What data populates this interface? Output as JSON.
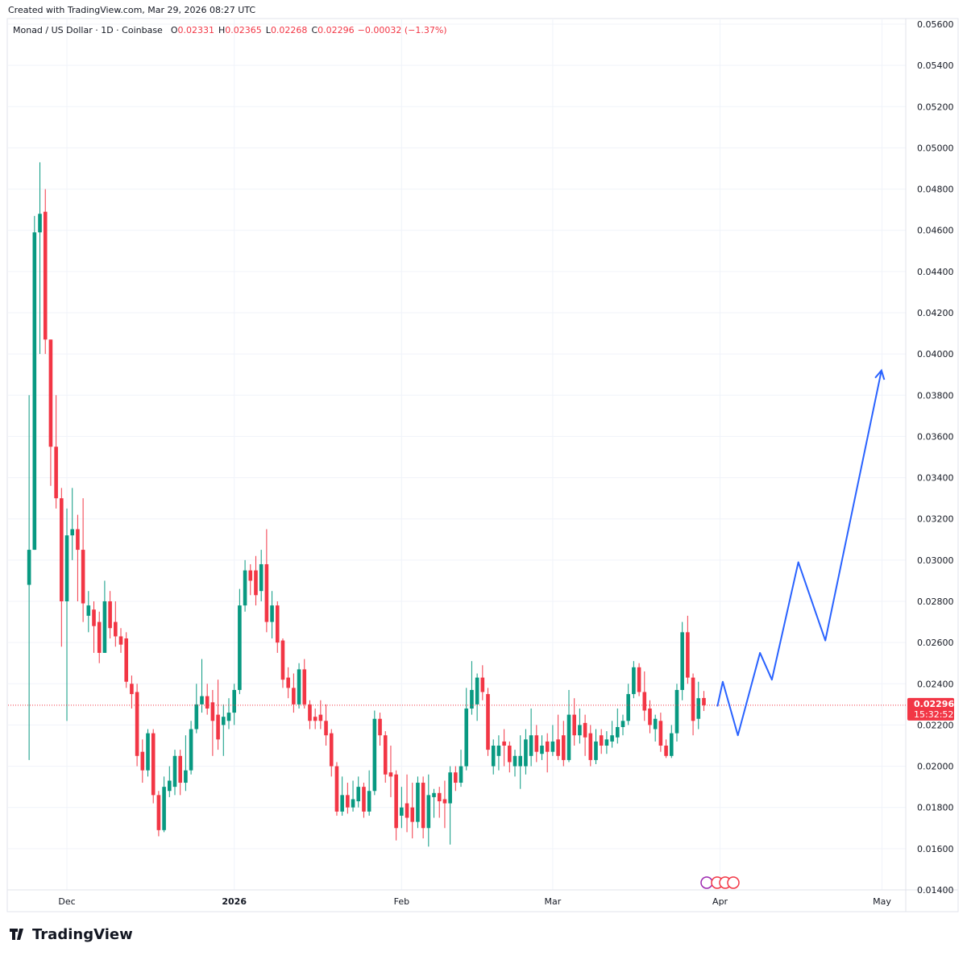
{
  "header": {
    "created": "Created with TradingView.com, Mar 29, 2026 08:27 UTC"
  },
  "footer": {
    "logo": "TradingView"
  },
  "chart_data": {
    "type": "candlestick",
    "title": "Monad / US Dollar · 1D · Coinbase",
    "legend": {
      "o_label": "O",
      "o": 0.02331,
      "h_label": "H",
      "h": 0.02365,
      "l_label": "L",
      "l": 0.02268,
      "c_label": "C",
      "c": 0.02296,
      "change": "−0.00032 (−1.37%)"
    },
    "up_color": "#089981",
    "down_color": "#f23645",
    "open": [
      0.0288,
      0.0305,
      0.0459,
      0.0469,
      0.0407,
      0.0355,
      0.033,
      0.028,
      0.0312,
      0.0315,
      0.0305,
      0.0273,
      0.0276,
      0.027,
      0.0255,
      0.028,
      0.027,
      0.0263,
      0.0262,
      0.024,
      0.0236,
      0.0207,
      0.0198,
      0.0216,
      0.0186,
      0.0169,
      0.0188,
      0.019,
      0.0205,
      0.0192,
      0.0198,
      0.0218,
      0.023,
      0.0234,
      0.0231,
      0.0225,
      0.022,
      0.0222,
      0.0226,
      0.0237,
      0.0278,
      0.0295,
      0.0295,
      0.0285,
      0.0298,
      0.027,
      0.0278,
      0.0261,
      0.0243,
      0.0238,
      0.023,
      0.0247,
      0.023,
      0.0224,
      0.0225,
      0.0222,
      0.0216,
      0.02,
      0.0178,
      0.0186,
      0.018,
      0.0183,
      0.019,
      0.0178,
      0.0188,
      0.0223,
      0.0215,
      0.0197,
      0.0196,
      0.0176,
      0.0182,
      0.018,
      0.0173,
      0.0192,
      0.017,
      0.0185,
      0.0187,
      0.0184,
      0.0182,
      0.0197,
      0.0192,
      0.02,
      0.0228,
      0.023,
      0.0243,
      0.0235,
      0.02,
      0.0205,
      0.0212,
      0.021,
      0.02,
      0.02,
      0.02,
      0.0205,
      0.0215,
      0.0206,
      0.0212,
      0.0207,
      0.0213,
      0.0215,
      0.0203,
      0.0225,
      0.0215,
      0.0221,
      0.0216,
      0.0203,
      0.0215,
      0.021,
      0.0212,
      0.0214,
      0.0219,
      0.0222,
      0.0235,
      0.0248,
      0.0236,
      0.0228,
      0.0218,
      0.0222,
      0.021,
      0.0205,
      0.0216,
      0.0237,
      0.0265,
      0.0243,
      0.0223,
      0.02331
    ],
    "high": [
      0.038,
      0.0467,
      0.0493,
      0.048,
      0.0407,
      0.038,
      0.0335,
      0.0325,
      0.0335,
      0.0322,
      0.033,
      0.0285,
      0.028,
      0.0275,
      0.029,
      0.0285,
      0.028,
      0.0267,
      0.0265,
      0.0244,
      0.024,
      0.0213,
      0.0218,
      0.0218,
      0.0188,
      0.0195,
      0.02,
      0.0208,
      0.0208,
      0.0215,
      0.0222,
      0.024,
      0.0252,
      0.024,
      0.0237,
      0.0242,
      0.023,
      0.0233,
      0.024,
      0.0286,
      0.03,
      0.0298,
      0.0302,
      0.0305,
      0.0315,
      0.0285,
      0.028,
      0.0262,
      0.0248,
      0.0245,
      0.025,
      0.0252,
      0.0232,
      0.0228,
      0.0232,
      0.023,
      0.0218,
      0.0202,
      0.0195,
      0.0192,
      0.0193,
      0.0195,
      0.0192,
      0.0198,
      0.0227,
      0.0226,
      0.0217,
      0.021,
      0.0198,
      0.019,
      0.0196,
      0.0192,
      0.0195,
      0.0195,
      0.0196,
      0.0189,
      0.019,
      0.0193,
      0.02,
      0.02,
      0.0208,
      0.0238,
      0.0251,
      0.0245,
      0.0249,
      0.0238,
      0.0213,
      0.0215,
      0.0218,
      0.0212,
      0.0208,
      0.0215,
      0.0218,
      0.0228,
      0.022,
      0.0215,
      0.0216,
      0.022,
      0.0225,
      0.0222,
      0.0237,
      0.0233,
      0.0228,
      0.0225,
      0.022,
      0.0218,
      0.0218,
      0.0217,
      0.0222,
      0.0228,
      0.0225,
      0.024,
      0.0251,
      0.025,
      0.0246,
      0.0232,
      0.0225,
      0.0226,
      0.0213,
      0.022,
      0.024,
      0.027,
      0.0273,
      0.0245,
      0.0241,
      0.02365
    ],
    "low": [
      0.0203,
      0.0305,
      0.04,
      0.04,
      0.0336,
      0.0325,
      0.0258,
      0.0222,
      0.03,
      0.028,
      0.027,
      0.0265,
      0.0255,
      0.025,
      0.0255,
      0.0262,
      0.0258,
      0.0255,
      0.0238,
      0.0228,
      0.02,
      0.0192,
      0.0195,
      0.0182,
      0.0166,
      0.0168,
      0.0185,
      0.0186,
      0.0186,
      0.0188,
      0.0196,
      0.0216,
      0.0226,
      0.0225,
      0.0205,
      0.0208,
      0.0205,
      0.0218,
      0.022,
      0.0235,
      0.0275,
      0.0283,
      0.0278,
      0.028,
      0.0265,
      0.0262,
      0.0255,
      0.0238,
      0.0233,
      0.0226,
      0.0228,
      0.0228,
      0.0218,
      0.0218,
      0.0218,
      0.021,
      0.0195,
      0.0176,
      0.0176,
      0.0177,
      0.0178,
      0.018,
      0.0175,
      0.0176,
      0.0186,
      0.021,
      0.0192,
      0.0185,
      0.0164,
      0.017,
      0.0168,
      0.0165,
      0.017,
      0.0165,
      0.0161,
      0.0175,
      0.0175,
      0.017,
      0.0162,
      0.0188,
      0.019,
      0.0198,
      0.0225,
      0.0222,
      0.0232,
      0.0205,
      0.0196,
      0.0198,
      0.02,
      0.0197,
      0.0195,
      0.0189,
      0.0196,
      0.02,
      0.0202,
      0.0203,
      0.0197,
      0.0205,
      0.0203,
      0.02,
      0.0202,
      0.021,
      0.0211,
      0.0205,
      0.02,
      0.0201,
      0.0206,
      0.0206,
      0.0209,
      0.0211,
      0.0215,
      0.022,
      0.0233,
      0.0234,
      0.0222,
      0.0216,
      0.0212,
      0.0207,
      0.0204,
      0.0204,
      0.0212,
      0.0232,
      0.024,
      0.0215,
      0.0218,
      0.02268
    ],
    "close": [
      0.0305,
      0.0459,
      0.0468,
      0.0407,
      0.0355,
      0.033,
      0.028,
      0.0312,
      0.0315,
      0.0305,
      0.0279,
      0.0278,
      0.0268,
      0.0255,
      0.028,
      0.0267,
      0.0263,
      0.0259,
      0.0241,
      0.0235,
      0.0205,
      0.0198,
      0.0216,
      0.0186,
      0.0169,
      0.019,
      0.0193,
      0.0205,
      0.0192,
      0.0198,
      0.0218,
      0.023,
      0.0234,
      0.0228,
      0.0222,
      0.0213,
      0.0224,
      0.0226,
      0.0237,
      0.0278,
      0.0295,
      0.029,
      0.0283,
      0.0298,
      0.027,
      0.0278,
      0.026,
      0.0242,
      0.0238,
      0.023,
      0.0247,
      0.023,
      0.0222,
      0.0222,
      0.0222,
      0.0215,
      0.02,
      0.0178,
      0.0186,
      0.018,
      0.0184,
      0.019,
      0.0178,
      0.0188,
      0.0223,
      0.0215,
      0.0196,
      0.0195,
      0.017,
      0.018,
      0.0175,
      0.0173,
      0.0192,
      0.017,
      0.0186,
      0.0187,
      0.0183,
      0.0182,
      0.0197,
      0.0192,
      0.02,
      0.0228,
      0.0237,
      0.0243,
      0.0236,
      0.0208,
      0.021,
      0.021,
      0.021,
      0.0202,
      0.0205,
      0.0205,
      0.0213,
      0.0215,
      0.0207,
      0.021,
      0.0207,
      0.0212,
      0.0205,
      0.0203,
      0.0225,
      0.0215,
      0.022,
      0.0214,
      0.0203,
      0.0212,
      0.021,
      0.0213,
      0.0215,
      0.0219,
      0.0222,
      0.0235,
      0.0248,
      0.0236,
      0.0227,
      0.022,
      0.0223,
      0.021,
      0.0205,
      0.0216,
      0.0237,
      0.0265,
      0.0243,
      0.0222,
      0.0233,
      0.02296
    ],
    "projection": {
      "color": "#2962ff",
      "x": [
        127.5,
        128.5,
        131.3,
        135.4,
        137.6,
        142.5,
        147.5,
        157.9
      ],
      "y": [
        0.0229,
        0.0241,
        0.0215,
        0.0255,
        0.0242,
        0.0299,
        0.0261,
        0.0392
      ]
    },
    "last_price": 0.02296,
    "countdown": "15:32:52",
    "xlim": [
      -3.9,
      162.4
    ],
    "xticks": [
      {
        "value": 7,
        "label": "Dec"
      },
      {
        "value": 38,
        "label": "2026"
      },
      {
        "value": 69,
        "label": "Feb"
      },
      {
        "value": 97,
        "label": "Mar"
      },
      {
        "value": 128,
        "label": "Apr"
      },
      {
        "value": 158,
        "label": "May"
      }
    ],
    "ylim": [
      0.014,
      0.056
    ],
    "yticks": [
      {
        "value": 0.014,
        "label": "0.01400"
      },
      {
        "value": 0.016,
        "label": "0.01600"
      },
      {
        "value": 0.018,
        "label": "0.01800"
      },
      {
        "value": 0.02,
        "label": "0.02000"
      },
      {
        "value": 0.022,
        "label": "0.02200"
      },
      {
        "value": 0.024,
        "label": "0.02400"
      },
      {
        "value": 0.026,
        "label": "0.02600"
      },
      {
        "value": 0.028,
        "label": "0.02800"
      },
      {
        "value": 0.03,
        "label": "0.03000"
      },
      {
        "value": 0.032,
        "label": "0.03200"
      },
      {
        "value": 0.034,
        "label": "0.03400"
      },
      {
        "value": 0.036,
        "label": "0.03600"
      },
      {
        "value": 0.038,
        "label": "0.03800"
      },
      {
        "value": 0.04,
        "label": "0.04000"
      },
      {
        "value": 0.042,
        "label": "0.04200"
      },
      {
        "value": 0.044,
        "label": "0.04400"
      },
      {
        "value": 0.046,
        "label": "0.04600"
      },
      {
        "value": 0.048,
        "label": "0.04800"
      },
      {
        "value": 0.05,
        "label": "0.05000"
      },
      {
        "value": 0.052,
        "label": "0.05200"
      },
      {
        "value": 0.054,
        "label": "0.05400"
      },
      {
        "value": 0.056,
        "label": "0.05600"
      }
    ],
    "grid": true
  }
}
